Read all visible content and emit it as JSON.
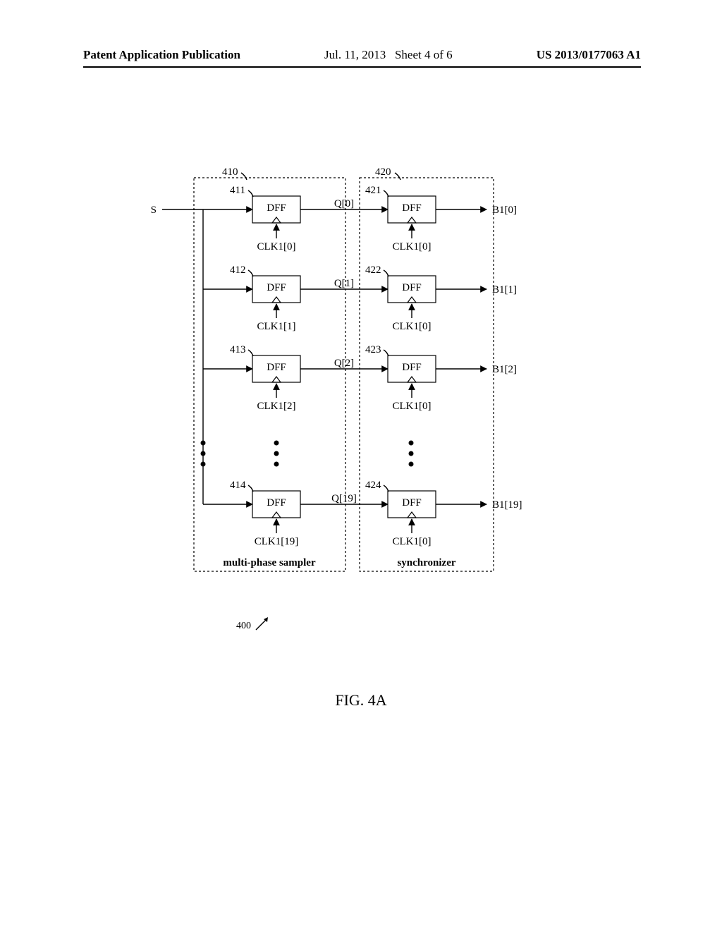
{
  "header": {
    "left": "Patent Application Publication",
    "date": "Jul. 11, 2013",
    "sheet": "Sheet 4 of 6",
    "pubno": "US 2013/0177063 A1"
  },
  "figure": {
    "id": "400",
    "caption": "FIG. 4A",
    "input_label": "S",
    "block_left": {
      "ref": "410",
      "label": "multi-phase sampler"
    },
    "block_right": {
      "ref": "420",
      "label": "synchronizer"
    },
    "dff_label": "DFF",
    "rows": [
      {
        "left_ref": "411",
        "right_ref": "421",
        "clk_left": "CLK1[0]",
        "clk_right": "CLK1[0]",
        "q": "Q[0]",
        "out": "B1[0]"
      },
      {
        "left_ref": "412",
        "right_ref": "422",
        "clk_left": "CLK1[1]",
        "clk_right": "CLK1[0]",
        "q": "Q[1]",
        "out": "B1[1]"
      },
      {
        "left_ref": "413",
        "right_ref": "423",
        "clk_left": "CLK1[2]",
        "clk_right": "CLK1[0]",
        "q": "Q[2]",
        "out": "B1[2]"
      },
      {
        "left_ref": "414",
        "right_ref": "424",
        "clk_left": "CLK1[19]",
        "clk_right": "CLK1[0]",
        "q": "Q[19]",
        "out": "B1[19]"
      }
    ]
  }
}
